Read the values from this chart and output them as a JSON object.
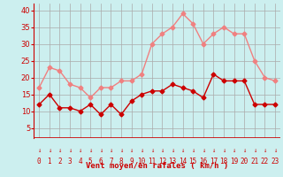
{
  "hours": [
    0,
    1,
    2,
    3,
    4,
    5,
    6,
    7,
    8,
    9,
    10,
    11,
    12,
    13,
    14,
    15,
    16,
    17,
    18,
    19,
    20,
    21,
    22,
    23
  ],
  "rafales": [
    17,
    23,
    22,
    18,
    17,
    14,
    17,
    17,
    19,
    19,
    21,
    30,
    33,
    35,
    39,
    36,
    30,
    33,
    35,
    33,
    33,
    25,
    20,
    19
  ],
  "vent_moyen": [
    12,
    15,
    11,
    11,
    10,
    12,
    9,
    12,
    9,
    13,
    15,
    16,
    16,
    18,
    17,
    16,
    14,
    21,
    19,
    19,
    19,
    12,
    12,
    12
  ],
  "color_rafales": "#f08080",
  "color_moyen": "#cc0000",
  "bg_color": "#ccefef",
  "grid_color": "#aaaaaa",
  "xlabel": "Vent moyen/en rafales ( km/h )",
  "xlabel_color": "#cc0000",
  "tick_color": "#cc0000",
  "axis_line_color": "#cc0000",
  "ylim": [
    2,
    42
  ],
  "yticks": [
    5,
    10,
    15,
    20,
    25,
    30,
    35,
    40
  ],
  "marker": "D",
  "marker_size": 2.5,
  "line_width": 1.0
}
